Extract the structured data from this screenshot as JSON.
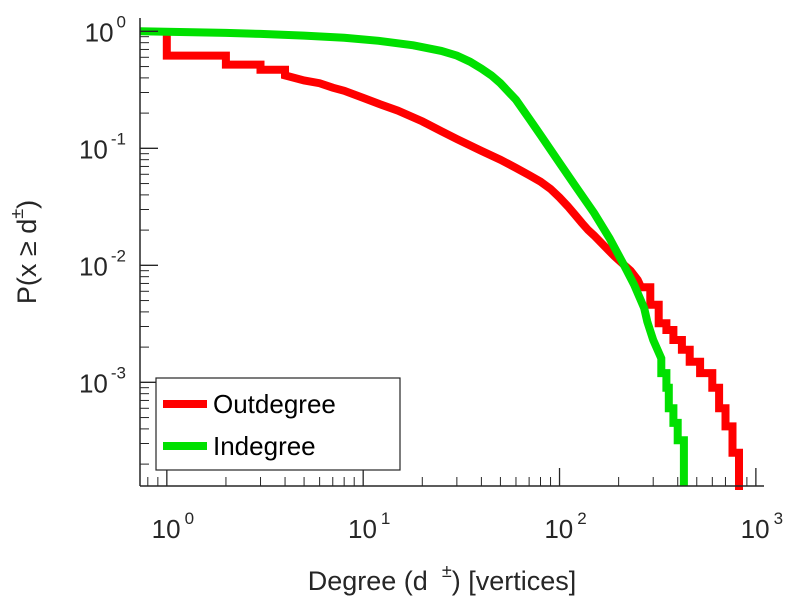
{
  "chart_data": {
    "type": "line",
    "scale": "log-log",
    "xlabel": {
      "main": "Degree (d",
      "sup": "±",
      "rest": ") [vertices]"
    },
    "ylabel": {
      "main": "P(x ≥ d",
      "sup": "±",
      "rest": ")"
    },
    "xlim": [
      0.73,
      1100
    ],
    "ylim": [
      0.00013,
      1.3
    ],
    "x_ticks": [
      {
        "base": "10",
        "exp": "0",
        "value": 1
      },
      {
        "base": "10",
        "exp": "1",
        "value": 10
      },
      {
        "base": "10",
        "exp": "2",
        "value": 100
      },
      {
        "base": "10",
        "exp": "3",
        "value": 1000
      }
    ],
    "y_ticks": [
      {
        "base": "10",
        "exp": "0",
        "value": 1
      },
      {
        "base": "10",
        "exp": "-1",
        "value": 0.1
      },
      {
        "base": "10",
        "exp": "-2",
        "value": 0.01
      },
      {
        "base": "10",
        "exp": "-3",
        "value": 0.001
      }
    ],
    "legend_position": "bottom-left",
    "series": [
      {
        "name": "Outdegree",
        "color": "#ff0000",
        "x": [
          1,
          1,
          2,
          2,
          3,
          3,
          4,
          4,
          5,
          6,
          7,
          8,
          10,
          12,
          15,
          20,
          25,
          30,
          40,
          50,
          60,
          70,
          80,
          90,
          100,
          110,
          120,
          130,
          140,
          150,
          170,
          190,
          210,
          230,
          250,
          260,
          290,
          290,
          320,
          320,
          350,
          350,
          380,
          380,
          420,
          420,
          460,
          460,
          520,
          520,
          600,
          600,
          650,
          650,
          700,
          700,
          760,
          760,
          820,
          820,
          860
        ],
        "y": [
          0.95,
          0.62,
          0.62,
          0.52,
          0.52,
          0.47,
          0.47,
          0.42,
          0.38,
          0.36,
          0.33,
          0.31,
          0.27,
          0.24,
          0.21,
          0.17,
          0.14,
          0.12,
          0.095,
          0.08,
          0.068,
          0.059,
          0.052,
          0.045,
          0.038,
          0.032,
          0.027,
          0.023,
          0.02,
          0.018,
          0.0145,
          0.012,
          0.0103,
          0.009,
          0.0075,
          0.0065,
          0.0065,
          0.0046,
          0.0046,
          0.0032,
          0.0032,
          0.0028,
          0.0028,
          0.0023,
          0.0023,
          0.0019,
          0.0019,
          0.0015,
          0.0015,
          0.0012,
          0.0012,
          0.0009,
          0.0009,
          0.0006,
          0.0006,
          0.00042,
          0.00042,
          0.00025,
          0.00025,
          0.00013,
          0.00013
        ]
      },
      {
        "name": "Indegree",
        "color": "#00e000",
        "x": [
          0.73,
          2,
          3,
          5,
          8,
          12,
          18,
          25,
          30,
          35,
          40,
          45,
          50,
          60,
          70,
          80,
          100,
          120,
          150,
          180,
          210,
          240,
          270,
          280,
          300,
          330,
          330,
          350,
          350,
          360,
          360,
          380,
          380,
          400,
          400,
          430,
          430
        ],
        "y": [
          1.0,
          0.97,
          0.95,
          0.92,
          0.88,
          0.83,
          0.76,
          0.68,
          0.62,
          0.55,
          0.48,
          0.42,
          0.36,
          0.26,
          0.18,
          0.13,
          0.075,
          0.048,
          0.028,
          0.017,
          0.0105,
          0.0068,
          0.0043,
          0.0033,
          0.0023,
          0.0016,
          0.0012,
          0.0012,
          0.0009,
          0.0009,
          0.0006,
          0.0006,
          0.00045,
          0.00045,
          0.00032,
          0.00032,
          0.00013
        ]
      }
    ]
  }
}
